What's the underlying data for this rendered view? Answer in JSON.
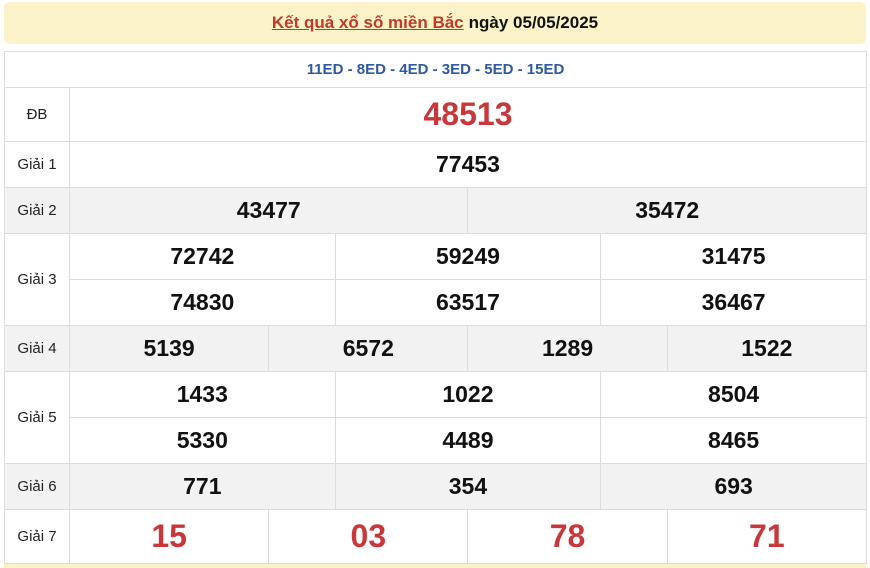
{
  "header": {
    "title_link": "Kết quả xổ số miền Bắc",
    "date_text": "ngày 05/05/2025"
  },
  "codes": "11ED - 8ED - 4ED - 3ED - 5ED - 15ED",
  "prizes": {
    "db": {
      "label": "ĐB",
      "values": [
        "48513"
      ]
    },
    "g1": {
      "label": "Giải 1",
      "values": [
        "77453"
      ]
    },
    "g2": {
      "label": "Giải 2",
      "values": [
        "43477",
        "35472"
      ]
    },
    "g3": {
      "label": "Giải 3",
      "values": [
        "72742",
        "59249",
        "31475",
        "74830",
        "63517",
        "36467"
      ]
    },
    "g4": {
      "label": "Giải 4",
      "values": [
        "5139",
        "6572",
        "1289",
        "1522"
      ]
    },
    "g5": {
      "label": "Giải 5",
      "values": [
        "1433",
        "1022",
        "8504",
        "5330",
        "4489",
        "8465"
      ]
    },
    "g6": {
      "label": "Giải 6",
      "values": [
        "771",
        "354",
        "693"
      ]
    },
    "g7": {
      "label": "Giải 7",
      "values": [
        "15",
        "03",
        "78",
        "71"
      ]
    }
  },
  "colors": {
    "accent_red": "#c8383a",
    "code_blue": "#2d5aa0",
    "header_bg": "#fbf3c7"
  }
}
